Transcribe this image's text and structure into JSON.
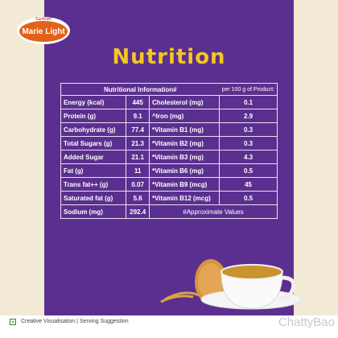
{
  "brand": {
    "maker": "Sunfeast",
    "name": "Marie Light"
  },
  "title": "Nutrition",
  "table": {
    "header": {
      "title": "Nutritional Information#",
      "basis": "per 100 g of Product:"
    },
    "rows": [
      [
        "Energy (kcal)",
        "445",
        "Cholesterol (mg)",
        "0.1"
      ],
      [
        "Protein (g)",
        "9.1",
        "^Iron (mg)",
        "2.9"
      ],
      [
        "Carbohydrate (g)",
        "77.4",
        "*Vitamin B1 (mg)",
        "0.3"
      ],
      [
        "Total Sugars (g)",
        "21.3",
        "*Vitamin B2 (mg)",
        "0.3"
      ],
      [
        "Added Sugar",
        "21.1",
        "*Vitamin B3 (mg)",
        "4.3"
      ],
      [
        "Fat (g)",
        "11",
        "*Vitamin B6 (mg)",
        "0.5"
      ],
      [
        "Trans fat++ (g)",
        "0.07",
        "*Vitamin B9 (mcg)",
        "45"
      ],
      [
        "Saturated fat (g)",
        "5.6",
        "*Vitamin B12 (mcg)",
        "0.5"
      ],
      [
        "Sodium (mg)",
        "292.4",
        "#Approximate Values"
      ]
    ]
  },
  "footer": "Creative Visualisation | Serving Suggestion",
  "watermark": "ChattyBao"
}
